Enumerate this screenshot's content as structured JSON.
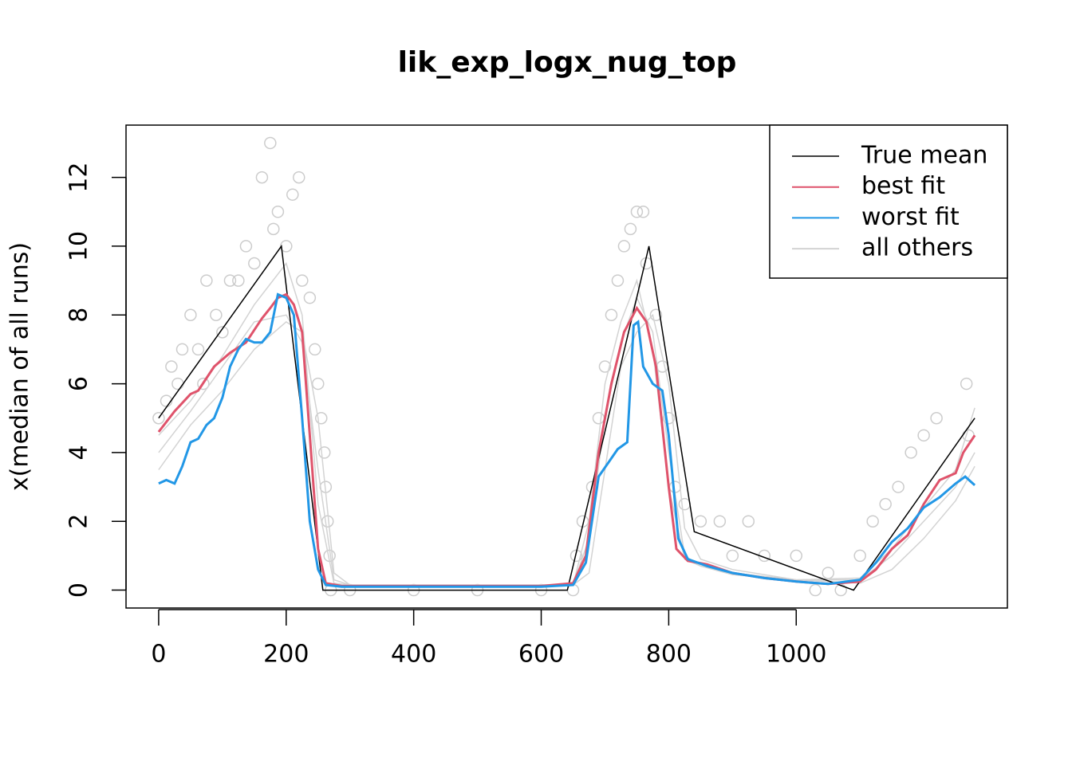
{
  "chart_data": {
    "type": "line",
    "title": "lik_exp_logx_nug_top",
    "y_label": "x(median of all runs)",
    "xlim": [
      -51.2,
      1331.2
    ],
    "ylim": [
      -0.52,
      13.52
    ],
    "xticks": [
      0,
      200,
      400,
      600,
      800,
      1000
    ],
    "yticks": [
      0,
      2,
      4,
      6,
      8,
      10,
      12
    ],
    "legend_position": "top-right",
    "points": {
      "color": "#cccccc",
      "x": [
        0,
        12,
        20,
        30,
        37,
        50,
        62,
        70,
        75,
        90,
        100,
        112,
        125,
        137,
        150,
        162,
        175,
        180,
        187,
        200,
        210,
        220,
        225,
        237,
        245,
        250,
        255,
        260,
        262,
        265,
        268,
        270,
        300,
        400,
        500,
        600,
        650,
        655,
        665,
        680,
        690,
        700,
        710,
        720,
        730,
        740,
        750,
        760,
        765,
        780,
        790,
        800,
        810,
        825,
        850,
        880,
        925,
        900,
        950,
        1000,
        1050,
        1030,
        1070,
        1100,
        1120,
        1140,
        1160,
        1180,
        1200,
        1220,
        1267,
        1270
      ],
      "y": [
        5,
        5.5,
        6.5,
        6,
        7,
        8,
        7,
        6,
        9,
        8,
        7.5,
        9,
        9,
        10,
        9.5,
        12,
        13,
        10.5,
        11,
        10,
        11.5,
        12,
        9,
        8.5,
        7,
        6,
        5,
        4,
        3,
        2,
        1,
        0,
        0,
        0,
        0,
        0,
        0,
        1,
        2,
        3,
        5,
        6.5,
        8,
        9,
        10,
        10.5,
        11,
        11,
        9.5,
        8,
        6.5,
        5,
        3,
        2.5,
        2,
        2,
        2,
        1,
        1,
        1,
        0.5,
        0,
        0,
        1,
        2,
        2.5,
        3,
        4,
        4.5,
        5,
        6,
        4.5
      ]
    },
    "series": [
      {
        "name": "all others",
        "color": "#d3d3d3",
        "x": [
          0,
          50,
          100,
          150,
          200,
          225,
          250,
          275,
          300,
          650,
          675,
          700,
          725,
          750,
          775,
          800,
          825,
          850,
          900,
          1000,
          1100,
          1150,
          1200,
          1250,
          1280
        ],
        "lines": [
          [
            4.0,
            5.2,
            6.5,
            7.8,
            8.0,
            7.2,
            3.5,
            0.3,
            0.15,
            0.15,
            1.5,
            5,
            7.2,
            8.5,
            7.5,
            4,
            1.0,
            0.7,
            0.5,
            0.3,
            0.3,
            1.0,
            2.0,
            3.0,
            4.0
          ],
          [
            3.5,
            4.8,
            5.8,
            7,
            7.8,
            7.5,
            5,
            0.5,
            0.15,
            0.15,
            0.5,
            3.5,
            6.5,
            7.5,
            8,
            6,
            1.8,
            0.9,
            0.6,
            0.3,
            0.2,
            0.6,
            1.5,
            2.6,
            3.6
          ],
          [
            4.5,
            5.5,
            6.8,
            8.3,
            9.5,
            8,
            2.5,
            0.2,
            0.15,
            0.15,
            2,
            6,
            7.8,
            9,
            7,
            3,
            0.9,
            0.7,
            0.45,
            0.3,
            0.35,
            1.2,
            2.4,
            3.5,
            5.3
          ]
        ]
      },
      {
        "name": "True mean",
        "color": "#000000",
        "x": [
          0,
          192.5,
          257.5,
          641,
          769,
          840,
          1090,
          1280
        ],
        "values": [
          5,
          10,
          0,
          0,
          10,
          1.7,
          0,
          5
        ]
      },
      {
        "name": "best fit",
        "color": "#df536b",
        "x": [
          0,
          25,
          50,
          62,
          87,
          112,
          137,
          162,
          175,
          187,
          200,
          212,
          225,
          237,
          250,
          262,
          287,
          400,
          600,
          650,
          670,
          690,
          710,
          730,
          750,
          765,
          780,
          800,
          812,
          830,
          860,
          900,
          950,
          1000,
          1050,
          1100,
          1125,
          1150,
          1175,
          1200,
          1225,
          1250,
          1262,
          1280
        ],
        "values": [
          4.6,
          5.2,
          5.7,
          5.8,
          6.5,
          6.9,
          7.2,
          7.9,
          8.2,
          8.5,
          8.6,
          8.3,
          7.5,
          4.5,
          1.2,
          0.2,
          0.12,
          0.12,
          0.12,
          0.2,
          1,
          4,
          6,
          7.5,
          8.2,
          7.8,
          6.5,
          3,
          1.2,
          0.85,
          0.75,
          0.5,
          0.35,
          0.25,
          0.18,
          0.25,
          0.6,
          1.2,
          1.6,
          2.5,
          3.2,
          3.4,
          4,
          4.5
        ]
      },
      {
        "name": "worst fit",
        "color": "#2297e6",
        "x": [
          0,
          12,
          25,
          37,
          50,
          62,
          75,
          87,
          100,
          112,
          125,
          137,
          150,
          162,
          175,
          187,
          200,
          212,
          225,
          237,
          250,
          262,
          287,
          600,
          650,
          670,
          690,
          705,
          720,
          735,
          745,
          752,
          760,
          775,
          790,
          800,
          815,
          830,
          860,
          900,
          950,
          1000,
          1050,
          1100,
          1125,
          1150,
          1175,
          1200,
          1225,
          1250,
          1265,
          1280
        ],
        "values": [
          3.1,
          3.2,
          3.1,
          3.6,
          4.3,
          4.4,
          4.8,
          5,
          5.6,
          6.5,
          7,
          7.3,
          7.2,
          7.2,
          7.5,
          8.6,
          8.5,
          8,
          5,
          2,
          0.6,
          0.15,
          0.1,
          0.1,
          0.15,
          0.8,
          3.3,
          3.7,
          4.1,
          4.3,
          7.7,
          7.8,
          6.5,
          6,
          5.8,
          4.5,
          1.5,
          0.9,
          0.7,
          0.5,
          0.35,
          0.25,
          0.18,
          0.3,
          0.8,
          1.4,
          1.8,
          2.4,
          2.7,
          3.1,
          3.3,
          3.05
        ]
      }
    ]
  }
}
